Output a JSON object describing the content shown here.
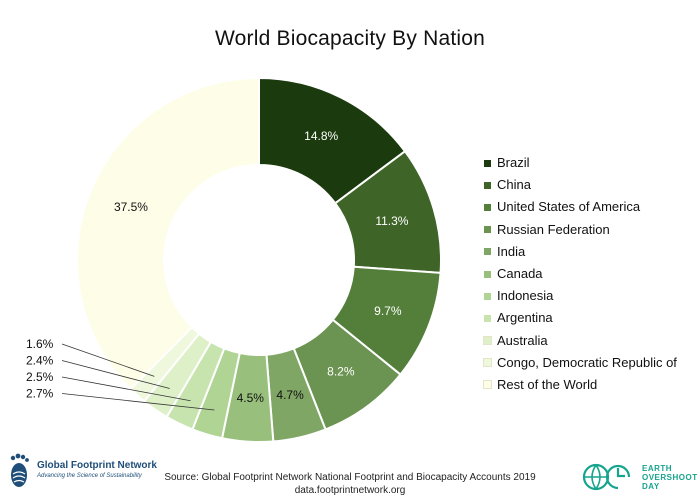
{
  "chart_data": {
    "type": "pie",
    "donut": true,
    "title": "World Biocapacity By Nation",
    "legend_position": "right",
    "series": [
      {
        "name": "Brazil",
        "value": 14.8,
        "label": "14.8%",
        "color": "#1b3a0d"
      },
      {
        "name": "China",
        "value": 11.3,
        "label": "11.3%",
        "color": "#3f6428"
      },
      {
        "name": "United States of America",
        "value": 9.7,
        "label": "9.7%",
        "color": "#547f3a"
      },
      {
        "name": "Russian Federation",
        "value": 8.2,
        "label": "8.2%",
        "color": "#6b9351"
      },
      {
        "name": "India",
        "value": 4.7,
        "label": "4.7%",
        "color": "#80a665"
      },
      {
        "name": "Canada",
        "value": 4.5,
        "label": "4.5%",
        "color": "#98c07c"
      },
      {
        "name": "Indonesia",
        "value": 2.7,
        "label": "2.7%",
        "color": "#afd494"
      },
      {
        "name": "Argentina",
        "value": 2.5,
        "label": "2.5%",
        "color": "#c7e4ae"
      },
      {
        "name": "Australia",
        "value": 2.4,
        "label": "2.4%",
        "color": "#def0c8"
      },
      {
        "name": "Congo, Democratic Republic of",
        "value": 1.6,
        "label": "1.6%",
        "color": "#eff8dc"
      },
      {
        "name": "Rest of the World",
        "value": 37.5,
        "label": "37.5%",
        "color": "#fdfde8"
      }
    ]
  },
  "source_line1": "Source: Global Footprint Network National Footprint and Biocapacity Accounts 2019",
  "source_line2": "data.footprintnetwork.org",
  "logos": {
    "gfn_name": "Global Footprint Network",
    "gfn_tagline": "Advancing the Science of Sustainability",
    "eod_line1": "EARTH",
    "eod_line2": "OVERSHOOT",
    "eod_line3": "DAY",
    "gfn_color": "#1f4e79",
    "eod_color": "#15a48d"
  }
}
